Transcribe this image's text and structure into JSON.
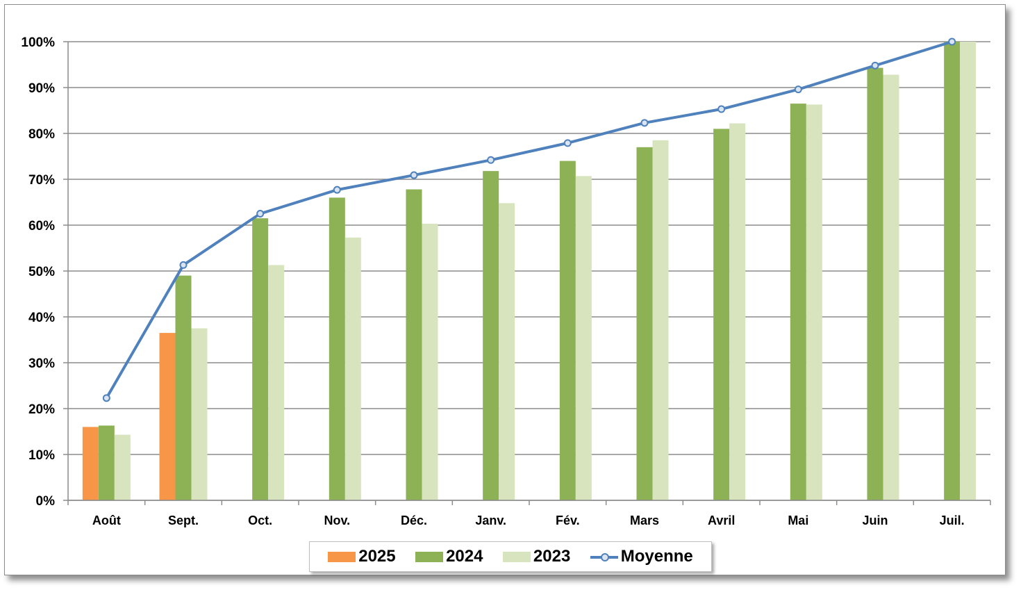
{
  "chart_data": {
    "type": "bar",
    "categories": [
      "Août",
      "Sept.",
      "Oct.",
      "Nov.",
      "Déc.",
      "Janv.",
      "Fév.",
      "Mars",
      "Avril",
      "Mai",
      "Juin",
      "Juil."
    ],
    "series": [
      {
        "name": "2025",
        "kind": "bar",
        "color": "#f79646",
        "values": [
          16,
          36.5,
          null,
          null,
          null,
          null,
          null,
          null,
          null,
          null,
          null,
          null
        ]
      },
      {
        "name": "2024",
        "kind": "bar",
        "color": "#8db255",
        "values": [
          16.3,
          49,
          61.5,
          66,
          67.8,
          71.8,
          74,
          77,
          81,
          86.5,
          94.3,
          100
        ]
      },
      {
        "name": "2023",
        "kind": "bar",
        "color": "#d7e4bd",
        "values": [
          14.3,
          37.5,
          51.3,
          57.3,
          60.3,
          64.8,
          70.7,
          78.5,
          82.2,
          86.3,
          92.8,
          100
        ]
      },
      {
        "name": "Moyenne",
        "kind": "line",
        "color": "#4f81bd",
        "values": [
          22.3,
          51.3,
          62.5,
          67.7,
          70.9,
          74.2,
          77.9,
          82.3,
          85.3,
          89.6,
          94.8,
          100
        ]
      }
    ],
    "y_ticks": [
      "0%",
      "10%",
      "20%",
      "30%",
      "40%",
      "50%",
      "60%",
      "70%",
      "80%",
      "90%",
      "100%"
    ],
    "ylim": [
      0,
      100
    ],
    "y_unit": "%",
    "grid": true,
    "legend_position": "bottom",
    "title": "",
    "xlabel": "",
    "ylabel": ""
  }
}
